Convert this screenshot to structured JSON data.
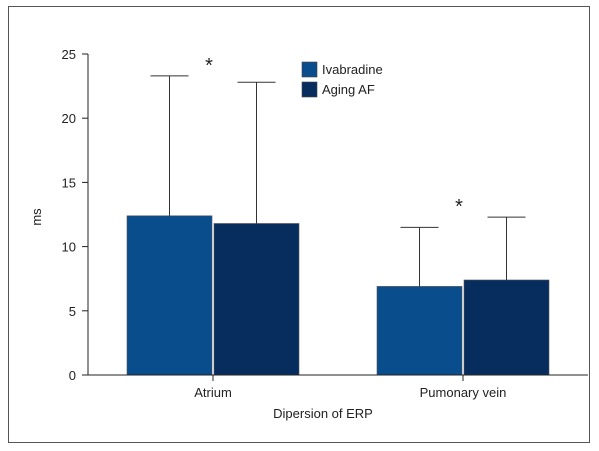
{
  "chart_data": {
    "type": "bar",
    "title": "",
    "xlabel": "Dipersion of ERP",
    "ylabel": "ms",
    "ylim": [
      0,
      25
    ],
    "yticks": [
      0,
      5,
      10,
      15,
      20,
      25
    ],
    "grid": false,
    "legend_position": "top-center",
    "categories": [
      "Atrium",
      "Pumonary vein"
    ],
    "series": [
      {
        "name": "Ivabradine",
        "color": "#0a4d8c",
        "values": [
          12.4,
          6.9
        ],
        "error_upper": [
          23.3,
          11.5
        ]
      },
      {
        "name": "Aging AF",
        "color": "#062d5e",
        "values": [
          11.8,
          7.4
        ],
        "error_upper": [
          22.8,
          12.3
        ]
      }
    ],
    "annotations": [
      {
        "text": "*",
        "category": "Atrium"
      },
      {
        "text": "*",
        "category": "Pumonary vein"
      }
    ]
  }
}
